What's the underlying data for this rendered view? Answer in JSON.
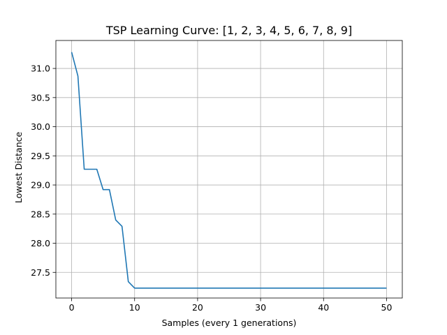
{
  "chart_data": {
    "type": "line",
    "title": "TSP Learning Curve: [1, 2, 3, 4, 5, 6, 7, 8, 9]",
    "xlabel": "Samples (every 1 generations)",
    "ylabel": "Lowest Distance",
    "xlim": [
      -2.5,
      52.5
    ],
    "ylim": [
      27.06,
      31.48
    ],
    "grid": true,
    "xticks": [
      0,
      10,
      20,
      30,
      40,
      50
    ],
    "xtick_labels": [
      "0",
      "10",
      "20",
      "30",
      "40",
      "50"
    ],
    "yticks": [
      27.5,
      28.0,
      28.5,
      29.0,
      29.5,
      30.0,
      30.5,
      31.0
    ],
    "ytick_labels": [
      "27.5",
      "28.0",
      "28.5",
      "29.0",
      "29.5",
      "30.0",
      "30.5",
      "31.0"
    ],
    "series": [
      {
        "color": "#1f77b4",
        "x": [
          0,
          1,
          2,
          3,
          4,
          5,
          6,
          7,
          8,
          9,
          10,
          11,
          12,
          13,
          14,
          15,
          16,
          17,
          18,
          19,
          20,
          21,
          22,
          23,
          24,
          25,
          26,
          27,
          28,
          29,
          30,
          31,
          32,
          33,
          34,
          35,
          36,
          37,
          38,
          39,
          40,
          41,
          42,
          43,
          44,
          45,
          46,
          47,
          48,
          49,
          50
        ],
        "y": [
          31.28,
          30.87,
          29.27,
          29.27,
          29.27,
          28.92,
          28.92,
          28.4,
          28.29,
          27.34,
          27.23,
          27.23,
          27.23,
          27.23,
          27.23,
          27.23,
          27.23,
          27.23,
          27.23,
          27.23,
          27.23,
          27.23,
          27.23,
          27.23,
          27.23,
          27.23,
          27.23,
          27.23,
          27.23,
          27.23,
          27.23,
          27.23,
          27.23,
          27.23,
          27.23,
          27.23,
          27.23,
          27.23,
          27.23,
          27.23,
          27.23,
          27.23,
          27.23,
          27.23,
          27.23,
          27.23,
          27.23,
          27.23,
          27.23,
          27.23,
          27.23
        ]
      }
    ]
  }
}
